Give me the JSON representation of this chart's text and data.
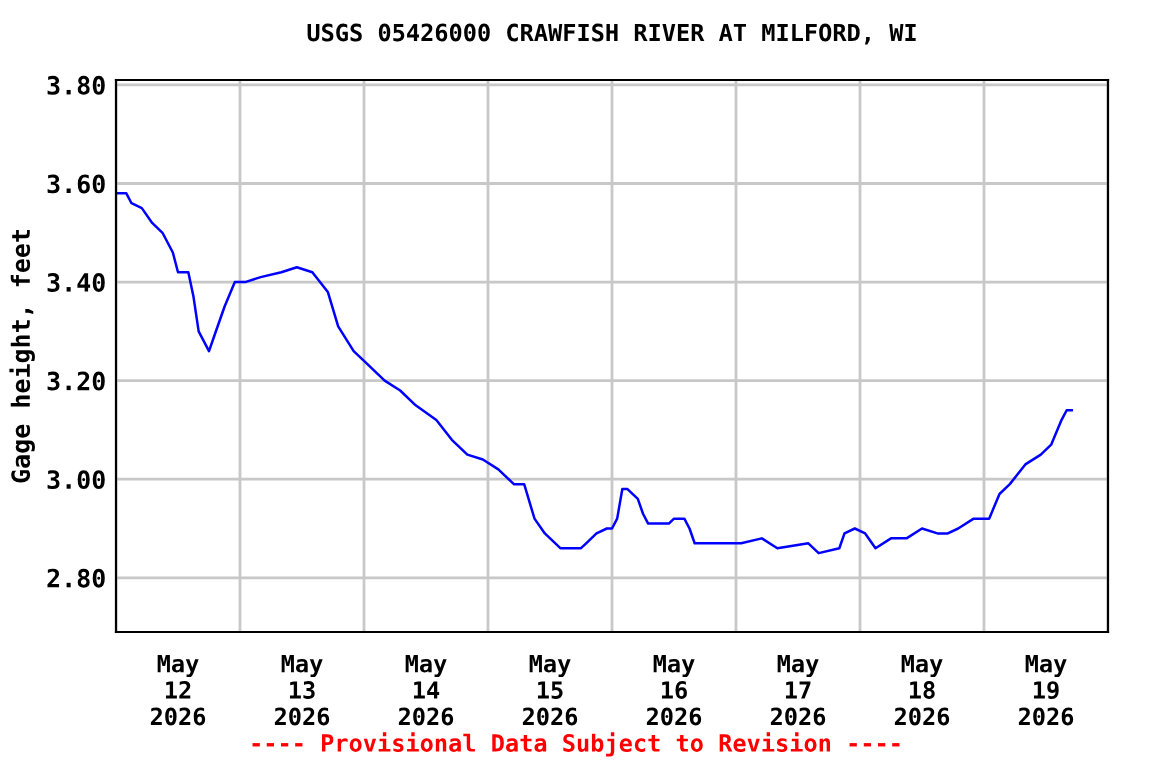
{
  "chart_data": {
    "type": "line",
    "title": "USGS 05426000 CRAWFISH RIVER AT MILFORD, WI",
    "ylabel": "Gage height, feet",
    "annotations": [
      "---- Provisional Data Subject to Revision ----"
    ],
    "x": [
      "2026-05-12T00:00",
      "2026-05-12T02:00",
      "2026-05-12T03:00",
      "2026-05-12T05:00",
      "2026-05-12T07:00",
      "2026-05-12T09:00",
      "2026-05-12T11:00",
      "2026-05-12T12:00",
      "2026-05-12T14:00",
      "2026-05-12T15:00",
      "2026-05-12T16:00",
      "2026-05-12T18:00",
      "2026-05-12T19:00",
      "2026-05-12T21:00",
      "2026-05-12T23:00",
      "2026-05-13T01:00",
      "2026-05-13T04:00",
      "2026-05-13T08:00",
      "2026-05-13T11:00",
      "2026-05-13T14:00",
      "2026-05-13T17:00",
      "2026-05-13T19:00",
      "2026-05-13T22:00",
      "2026-05-14T00:00",
      "2026-05-14T04:00",
      "2026-05-14T07:00",
      "2026-05-14T10:00",
      "2026-05-14T14:00",
      "2026-05-14T17:00",
      "2026-05-14T20:00",
      "2026-05-14T23:00",
      "2026-05-15T02:00",
      "2026-05-15T05:00",
      "2026-05-15T07:00",
      "2026-05-15T09:00",
      "2026-05-15T11:00",
      "2026-05-15T14:00",
      "2026-05-15T18:00",
      "2026-05-15T19:00",
      "2026-05-15T21:00",
      "2026-05-15T23:00",
      "2026-05-16T00:00",
      "2026-05-16T01:00",
      "2026-05-16T02:00",
      "2026-05-16T03:00",
      "2026-05-16T05:00",
      "2026-05-16T06:00",
      "2026-05-16T07:00",
      "2026-05-16T11:00",
      "2026-05-16T12:00",
      "2026-05-16T14:00",
      "2026-05-16T15:00",
      "2026-05-16T16:00",
      "2026-05-16T18:00",
      "2026-05-16T21:00",
      "2026-05-17T01:00",
      "2026-05-17T05:00",
      "2026-05-17T08:00",
      "2026-05-17T14:00",
      "2026-05-17T16:00",
      "2026-05-17T20:00",
      "2026-05-17T21:00",
      "2026-05-17T23:00",
      "2026-05-18T01:00",
      "2026-05-18T03:00",
      "2026-05-18T06:00",
      "2026-05-18T09:00",
      "2026-05-18T12:00",
      "2026-05-18T15:00",
      "2026-05-18T17:00",
      "2026-05-18T19:00",
      "2026-05-18T22:00",
      "2026-05-19T01:00",
      "2026-05-19T03:00",
      "2026-05-19T05:00",
      "2026-05-19T08:00",
      "2026-05-19T11:00",
      "2026-05-19T13:00",
      "2026-05-19T15:00",
      "2026-05-19T16:00",
      "2026-05-19T17:00"
    ],
    "series": [
      {
        "color": "#0000ff",
        "values": [
          3.58,
          3.58,
          3.56,
          3.55,
          3.52,
          3.5,
          3.46,
          3.42,
          3.42,
          3.37,
          3.3,
          3.26,
          3.29,
          3.35,
          3.4,
          3.4,
          3.41,
          3.42,
          3.43,
          3.42,
          3.38,
          3.31,
          3.26,
          3.24,
          3.2,
          3.18,
          3.15,
          3.12,
          3.08,
          3.05,
          3.04,
          3.02,
          2.99,
          2.99,
          2.92,
          2.89,
          2.86,
          2.86,
          2.87,
          2.89,
          2.9,
          2.9,
          2.92,
          2.98,
          2.98,
          2.96,
          2.93,
          2.91,
          2.91,
          2.92,
          2.92,
          2.9,
          2.87,
          2.87,
          2.87,
          2.87,
          2.88,
          2.86,
          2.87,
          2.85,
          2.86,
          2.89,
          2.9,
          2.89,
          2.86,
          2.88,
          2.88,
          2.9,
          2.89,
          2.89,
          2.9,
          2.92,
          2.92,
          2.97,
          2.99,
          3.03,
          3.05,
          3.07,
          3.12,
          3.14,
          3.14
        ]
      }
    ],
    "xlim": [
      "2026-05-12T00:00",
      "2026-05-20T00:00"
    ],
    "xticks": [
      {
        "value": "2026-05-12T00:00",
        "label": null
      },
      {
        "value": "2026-05-12T12:00",
        "label": "May\n12\n2026"
      },
      {
        "value": "2026-05-13T00:00",
        "label": null
      },
      {
        "value": "2026-05-13T12:00",
        "label": "May\n13\n2026"
      },
      {
        "value": "2026-05-14T00:00",
        "label": null
      },
      {
        "value": "2026-05-14T12:00",
        "label": "May\n14\n2026"
      },
      {
        "value": "2026-05-15T00:00",
        "label": null
      },
      {
        "value": "2026-05-15T12:00",
        "label": "May\n15\n2026"
      },
      {
        "value": "2026-05-16T00:00",
        "label": null
      },
      {
        "value": "2026-05-16T12:00",
        "label": "May\n16\n2026"
      },
      {
        "value": "2026-05-17T00:00",
        "label": null
      },
      {
        "value": "2026-05-17T12:00",
        "label": "May\n17\n2026"
      },
      {
        "value": "2026-05-18T00:00",
        "label": null
      },
      {
        "value": "2026-05-18T12:00",
        "label": "May\n18\n2026"
      },
      {
        "value": "2026-05-19T00:00",
        "label": null
      },
      {
        "value": "2026-05-19T12:00",
        "label": "May\n19\n2026"
      },
      {
        "value": "2026-05-20T00:00",
        "label": null
      }
    ],
    "ylim": [
      2.69,
      3.81
    ],
    "yticks": [
      {
        "value": 2.8,
        "label": "2.80"
      },
      {
        "value": 3.0,
        "label": "3.00"
      },
      {
        "value": 3.2,
        "label": "3.20"
      },
      {
        "value": 3.4,
        "label": "3.40"
      },
      {
        "value": 3.6,
        "label": "3.60"
      },
      {
        "value": 3.8,
        "label": "3.80"
      }
    ],
    "grid": true,
    "line_style": "solid",
    "marker": "none",
    "legend": false
  }
}
